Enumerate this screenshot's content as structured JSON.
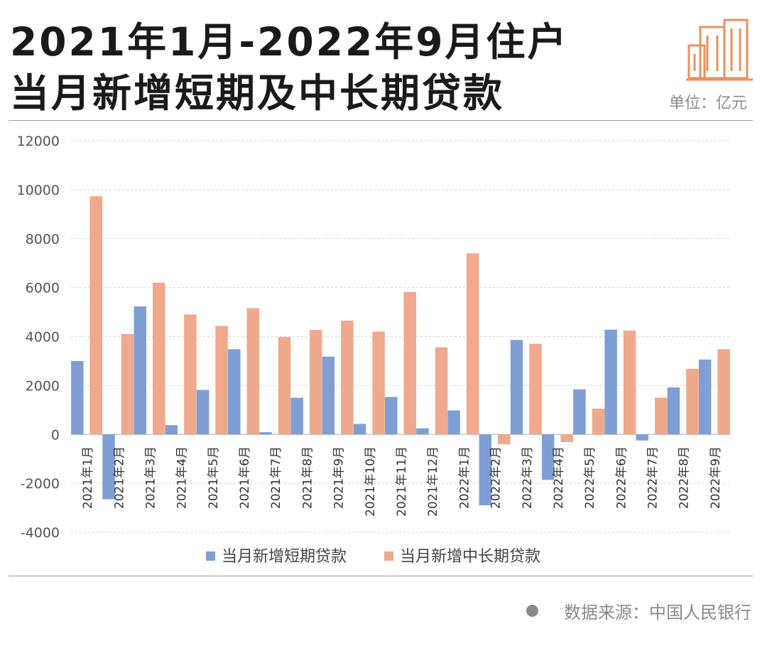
{
  "header": {
    "title_line1": "2021年1月-2022年9月住户",
    "title_line2": "当月新增短期及中长期贷款",
    "unit": "单位：亿元",
    "logo_icon": "buildings-icon"
  },
  "footer": {
    "source": "数据来源：中国人民银行"
  },
  "colors": {
    "short": "#7f9fd4",
    "long": "#efa98c",
    "logo": "#e8925c",
    "grid": "#d8d8d8"
  },
  "chart_data": {
    "type": "bar",
    "title": "2021年1月-2022年9月住户当月新增短期及中长期贷款",
    "ylabel": "",
    "xlabel": "",
    "ylim": [
      -4000,
      12000
    ],
    "yticks": [
      -4000,
      -2000,
      0,
      2000,
      4000,
      6000,
      8000,
      10000,
      12000
    ],
    "grid": true,
    "legend_position": "bottom",
    "categories": [
      "2021年1月",
      "2021年2月",
      "2021年3月",
      "2021年4月",
      "2021年5月",
      "2021年6月",
      "2021年7月",
      "2021年8月",
      "2021年9月",
      "2021年10月",
      "2021年11月",
      "2021年12月",
      "2022年1月",
      "2022年2月",
      "2022年3月",
      "2022年4月",
      "2022年5月",
      "2022年6月",
      "2022年7月",
      "2022年8月",
      "2022年9月"
    ],
    "series": [
      {
        "name": "当月新增短期贷款",
        "values": [
          3000,
          -2650,
          5230,
          380,
          1820,
          3480,
          90,
          1500,
          3180,
          430,
          1530,
          250,
          980,
          -2900,
          3860,
          -1860,
          1840,
          4280,
          -250,
          1920,
          3060
        ]
      },
      {
        "name": "当月新增中长期贷款",
        "values": [
          9730,
          4100,
          6200,
          4900,
          4430,
          5160,
          3980,
          4270,
          4650,
          4200,
          5820,
          3560,
          7400,
          -400,
          3700,
          -310,
          1050,
          4240,
          1500,
          2680,
          3480
        ]
      }
    ]
  }
}
